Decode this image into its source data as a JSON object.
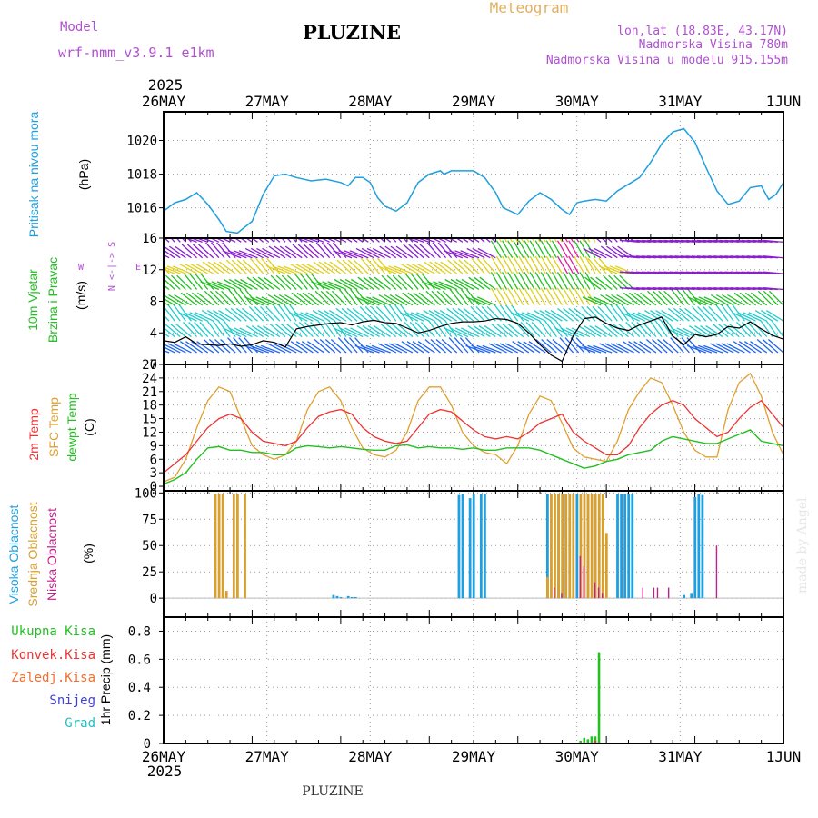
{
  "header": {
    "model_label": "Model",
    "model_name": "wrf-nmm_v3.9.1  e1km",
    "station_title": "PLUZINE",
    "product_title": "Meteogram",
    "coords": "lon,lat (18.83E, 43.17N)",
    "elevation": "Nadmorska Visina 780m",
    "model_elevation": "Nadmorska Visina u modelu 915.155m",
    "year_top": "2025",
    "year_bottom": "2025",
    "footer_station": "PLUZINE",
    "credit": "made by Angel"
  },
  "colors": {
    "pressure": "#1f9fe0",
    "wind_low": "#2266ee",
    "wind_mid": "#22cccc",
    "wind_green": "#22c022",
    "wind_yellow": "#e0d020",
    "wind_magenta": "#e01fa0",
    "wind_purple": "#8a1fd0",
    "temp_2m": "#ee3333",
    "temp_sfc": "#e0a030",
    "dewpoint": "#22c022",
    "cloud_high": "#1f9fe0",
    "cloud_mid": "#d8a030",
    "cloud_low": "#c0208a",
    "precip_total": "#22c022",
    "precip_conv": "#ee3333",
    "precip_frozen": "#f07030",
    "snow": "#4040e0",
    "hail": "#22c0c0",
    "header_purple": "#b050d0",
    "header_orange": "#e0b060"
  },
  "axes": {
    "x_ticks": [
      "26MAY",
      "27MAY",
      "28MAY",
      "29MAY",
      "30MAY",
      "31MAY",
      "1JUN"
    ]
  },
  "panels": {
    "pressure": {
      "label_main": "Pritisak na nivou mora",
      "unit": "(hPa)",
      "y_ticks": [
        "1016",
        "1018",
        "1020"
      ]
    },
    "wind": {
      "label_main": "10m Vjetar",
      "label_sub": "Brzina i Pravac",
      "unit": "(m/s)",
      "compass_ns": "N <-|-> S",
      "compass_w": "W",
      "compass_e": "E",
      "y_ticks": [
        "0",
        "4",
        "8",
        "12",
        "16"
      ]
    },
    "temperature": {
      "label_2m": "2m Temp",
      "label_sfc": "SFC Temp",
      "label_dew": "dewpt Temp",
      "unit": "(C)",
      "y_ticks": [
        "0",
        "3",
        "6",
        "9",
        "12",
        "15",
        "18",
        "21",
        "24",
        "27"
      ]
    },
    "clouds": {
      "label_high": "Visoka Oblacnost",
      "label_mid": "Srednja Oblacnost",
      "label_low": "Niska Oblacnost",
      "unit": "(%)",
      "y_ticks": [
        "0",
        "25",
        "50",
        "75",
        "100"
      ]
    },
    "precip": {
      "legend_total": "Ukupna Kisa",
      "legend_conv": "Konvek.Kisa",
      "legend_frozen": "Zaledj.Kisa",
      "legend_snow": "Snijeg",
      "legend_hail": "Grad",
      "unit": "1hr Precip (mm)",
      "y_ticks": [
        "0",
        "0.2",
        "0.4",
        "0.6",
        "0.8"
      ]
    }
  },
  "chart_data": [
    {
      "type": "line",
      "title": "Pritisak na nivou mora",
      "ylabel": "(hPa)",
      "ylim": [
        1014.2,
        1021.7
      ],
      "x_unit": "hours from 26MAY 00UTC",
      "series": [
        {
          "name": "Pritisak na nivou mora",
          "x": [
            0,
            3,
            6,
            9,
            12,
            15,
            17,
            20,
            24,
            27,
            30,
            33,
            36,
            40,
            44,
            48,
            50,
            52,
            54,
            56,
            58,
            60,
            63,
            66,
            69,
            72,
            75,
            76,
            78,
            81,
            84,
            87,
            90,
            92,
            96,
            99,
            102,
            105,
            108,
            110,
            112,
            114,
            117,
            120,
            123,
            126,
            129,
            132,
            135,
            138,
            141,
            144,
            147,
            150,
            153,
            156,
            159,
            162,
            164,
            166,
            168
          ],
          "values": [
            1015.8,
            1016.3,
            1016.5,
            1016.9,
            1016.2,
            1015.3,
            1014.6,
            1014.5,
            1015.2,
            1016.8,
            1017.9,
            1018.0,
            1017.8,
            1017.6,
            1017.7,
            1017.5,
            1017.3,
            1017.8,
            1017.8,
            1017.5,
            1016.6,
            1016.1,
            1015.8,
            1016.3,
            1017.5,
            1018.0,
            1018.2,
            1018.0,
            1018.2,
            1018.2,
            1018.2,
            1017.8,
            1016.9,
            1016.0,
            1015.6,
            1016.4,
            1016.9,
            1016.5,
            1015.9,
            1015.6,
            1016.3,
            1016.4,
            1016.5,
            1016.4,
            1017.0,
            1017.4,
            1017.8,
            1018.7,
            1019.8,
            1020.5,
            1020.7,
            1019.9,
            1018.4,
            1017.0,
            1016.2,
            1016.4,
            1017.2,
            1017.3,
            1016.5,
            1016.8,
            1017.5
          ]
        }
      ]
    },
    {
      "type": "line",
      "title": "10m Vjetar / Brzina i Pravac",
      "ylabel": "(m/s)",
      "ylim": [
        0,
        16
      ],
      "series": [
        {
          "name": "wind speed",
          "x": [
            0,
            3,
            6,
            9,
            12,
            15,
            18,
            21,
            24,
            27,
            30,
            33,
            36,
            39,
            42,
            45,
            48,
            51,
            54,
            57,
            60,
            63,
            66,
            69,
            72,
            75,
            78,
            81,
            84,
            87,
            90,
            93,
            96,
            99,
            102,
            105,
            108,
            111,
            114,
            117,
            120,
            123,
            126,
            129,
            132,
            135,
            138,
            141,
            144,
            147,
            150,
            153,
            156,
            159,
            162,
            165,
            168
          ],
          "values": [
            3.0,
            2.8,
            3.5,
            2.6,
            2.5,
            2.4,
            2.6,
            2.3,
            2.5,
            3.0,
            2.8,
            2.2,
            4.5,
            4.8,
            5.0,
            5.2,
            5.3,
            5.0,
            5.4,
            5.6,
            5.3,
            5.2,
            4.6,
            4.0,
            4.3,
            4.8,
            5.2,
            5.4,
            5.4,
            5.5,
            5.8,
            5.7,
            5.2,
            4.0,
            2.5,
            1.2,
            0.4,
            3.6,
            5.8,
            6.0,
            5.2,
            4.6,
            4.3,
            5.0,
            5.5,
            6.0,
            3.6,
            2.5,
            3.8,
            3.5,
            3.8,
            4.8,
            4.6,
            5.4,
            4.5,
            3.7,
            3.2
          ]
        }
      ]
    },
    {
      "type": "line",
      "title": "2m Temp / SFC Temp / dewpt Temp",
      "ylabel": "(C)",
      "ylim": [
        -1,
        27
      ],
      "series": [
        {
          "name": "2m Temp",
          "x": [
            0,
            3,
            6,
            9,
            12,
            15,
            18,
            21,
            24,
            27,
            30,
            33,
            36,
            39,
            42,
            45,
            48,
            51,
            54,
            57,
            60,
            63,
            66,
            69,
            72,
            75,
            78,
            81,
            84,
            87,
            90,
            93,
            96,
            99,
            102,
            105,
            108,
            111,
            114,
            117,
            120,
            123,
            126,
            129,
            132,
            135,
            138,
            141,
            144,
            147,
            150,
            153,
            156,
            159,
            162,
            165,
            168
          ],
          "values": [
            3,
            5,
            7,
            10,
            13,
            15,
            16,
            15,
            12,
            10,
            9.5,
            9,
            10,
            13,
            15.5,
            16.5,
            17,
            16,
            13,
            11,
            10,
            9.5,
            10,
            13,
            16,
            17,
            16.5,
            14.5,
            12.5,
            11,
            10.5,
            11,
            10.5,
            12,
            14,
            15,
            16,
            12,
            10,
            8.5,
            7,
            7,
            9,
            13,
            16,
            18,
            19,
            18,
            15,
            13,
            11,
            12,
            15,
            17.5,
            19,
            16,
            13
          ]
        },
        {
          "name": "SFC Temp",
          "x": [
            0,
            3,
            6,
            9,
            12,
            15,
            18,
            21,
            24,
            27,
            30,
            33,
            36,
            39,
            42,
            45,
            48,
            51,
            54,
            57,
            60,
            63,
            66,
            69,
            72,
            75,
            78,
            81,
            84,
            87,
            90,
            93,
            96,
            99,
            102,
            105,
            108,
            111,
            114,
            117,
            120,
            123,
            126,
            129,
            132,
            135,
            138,
            141,
            144,
            147,
            150,
            153,
            156,
            159,
            162,
            165,
            168
          ],
          "values": [
            1,
            2,
            6,
            13,
            19,
            22,
            21,
            15,
            9,
            7,
            6,
            7,
            10,
            17,
            21,
            22,
            19,
            13,
            8.5,
            7,
            6.5,
            8,
            12,
            19,
            22,
            22,
            18,
            12,
            9,
            7.5,
            7,
            5,
            9,
            16,
            20,
            19,
            14,
            8.5,
            6.5,
            6,
            5.5,
            10,
            17,
            21,
            24,
            23,
            18,
            12,
            8,
            6.5,
            6.5,
            17,
            23,
            25,
            20,
            12,
            7
          ]
        },
        {
          "name": "dewpt Temp",
          "x": [
            0,
            3,
            6,
            9,
            12,
            15,
            18,
            21,
            24,
            27,
            30,
            33,
            36,
            39,
            42,
            45,
            48,
            51,
            54,
            57,
            60,
            63,
            66,
            69,
            72,
            75,
            78,
            81,
            84,
            87,
            90,
            93,
            96,
            99,
            102,
            105,
            108,
            111,
            114,
            117,
            120,
            123,
            126,
            129,
            132,
            135,
            138,
            141,
            144,
            147,
            150,
            153,
            156,
            159,
            162,
            165,
            168
          ],
          "values": [
            0.5,
            1.5,
            3,
            6,
            8.5,
            8.8,
            8,
            8,
            7.5,
            7.5,
            7,
            7,
            8.5,
            9,
            8.8,
            8.5,
            8.8,
            8.5,
            8.2,
            8,
            8,
            9,
            9.2,
            8.5,
            8.8,
            8.5,
            8.5,
            8.2,
            8.5,
            8,
            8,
            8.5,
            8.5,
            8.5,
            8,
            7,
            6,
            5,
            4,
            4.5,
            5.5,
            6,
            7,
            7.5,
            8,
            10,
            11,
            10.5,
            10,
            9.5,
            9.5,
            10.5,
            11.5,
            12.5,
            10,
            9.5,
            9
          ]
        }
      ]
    },
    {
      "type": "bar",
      "title": "Visoka / Srednja / Niska Oblacnost",
      "ylabel": "(%)",
      "ylim": [
        0,
        100
      ],
      "series": [
        {
          "name": "Visoka Oblacnost",
          "x": [
            46,
            47,
            48,
            50,
            51,
            52,
            80,
            81,
            83,
            84,
            86,
            87,
            104,
            107,
            109,
            112,
            115,
            123,
            124,
            125,
            126,
            127,
            141,
            143,
            144,
            145,
            146,
            147
          ],
          "values": [
            3,
            2,
            1,
            2,
            1,
            1,
            98,
            99,
            95,
            99,
            99,
            99,
            99,
            99,
            99,
            99,
            99,
            99,
            99,
            99,
            99,
            99,
            3,
            5,
            96,
            99,
            98,
            0
          ]
        },
        {
          "name": "Srednja Oblacnost",
          "x": [
            14,
            15,
            16,
            17,
            19,
            20,
            22,
            104,
            105,
            106,
            107,
            108,
            109,
            110,
            111,
            113,
            114,
            115,
            116,
            117,
            118,
            119,
            120
          ],
          "values": [
            99,
            99,
            99,
            7,
            99,
            99,
            99,
            20,
            99,
            99,
            99,
            99,
            99,
            99,
            99,
            99,
            99,
            99,
            99,
            99,
            99,
            99,
            62
          ]
        },
        {
          "name": "Niska Oblacnost",
          "x": [
            106,
            108,
            113,
            114,
            117,
            118,
            119,
            130,
            133,
            134,
            137,
            150
          ],
          "values": [
            10,
            5,
            40,
            30,
            15,
            10,
            5,
            10,
            10,
            10,
            10,
            50
          ]
        }
      ]
    },
    {
      "type": "bar",
      "title": "1hr Precip",
      "ylabel": "1hr Precip (mm)",
      "ylim": [
        0,
        0.9
      ],
      "series": [
        {
          "name": "Ukupna Kisa",
          "x": [
            113,
            114,
            115,
            116,
            117,
            118
          ],
          "values": [
            0.02,
            0.04,
            0.03,
            0.05,
            0.05,
            0.65
          ]
        },
        {
          "name": "Konvek.Kisa",
          "x": [
            117
          ],
          "values": [
            0.02
          ]
        }
      ]
    }
  ]
}
